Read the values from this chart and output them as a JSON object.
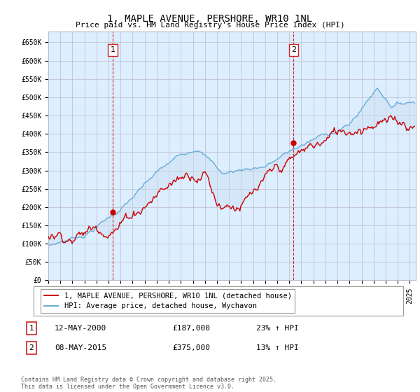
{
  "title": "1, MAPLE AVENUE, PERSHORE, WR10 1NL",
  "subtitle": "Price paid vs. HM Land Registry's House Price Index (HPI)",
  "ylabel_ticks": [
    "£0",
    "£50K",
    "£100K",
    "£150K",
    "£200K",
    "£250K",
    "£300K",
    "£350K",
    "£400K",
    "£450K",
    "£500K",
    "£550K",
    "£600K",
    "£650K"
  ],
  "ytick_values": [
    0,
    50000,
    100000,
    150000,
    200000,
    250000,
    300000,
    350000,
    400000,
    450000,
    500000,
    550000,
    600000,
    650000
  ],
  "ylim": [
    0,
    680000
  ],
  "xlim_start": 1995.0,
  "xlim_end": 2025.5,
  "hpi_color": "#6baed6",
  "price_color": "#cc0000",
  "dashed_color": "#cc2222",
  "fill_color": "#c6dbef",
  "background_color": "#ffffff",
  "chart_bg_color": "#ddeeff",
  "grid_color": "#bbbbcc",
  "legend_label_price": "1, MAPLE AVENUE, PERSHORE, WR10 1NL (detached house)",
  "legend_label_hpi": "HPI: Average price, detached house, Wychavon",
  "annotation1_label": "1",
  "annotation1_date": "12-MAY-2000",
  "annotation1_price": "£187,000",
  "annotation1_hpi": "23% ↑ HPI",
  "annotation2_label": "2",
  "annotation2_date": "08-MAY-2015",
  "annotation2_price": "£375,000",
  "annotation2_hpi": "13% ↑ HPI",
  "footer": "Contains HM Land Registry data © Crown copyright and database right 2025.\nThis data is licensed under the Open Government Licence v3.0.",
  "sale1_x": 2000.36,
  "sale1_y": 187000,
  "sale2_x": 2015.36,
  "sale2_y": 375000
}
